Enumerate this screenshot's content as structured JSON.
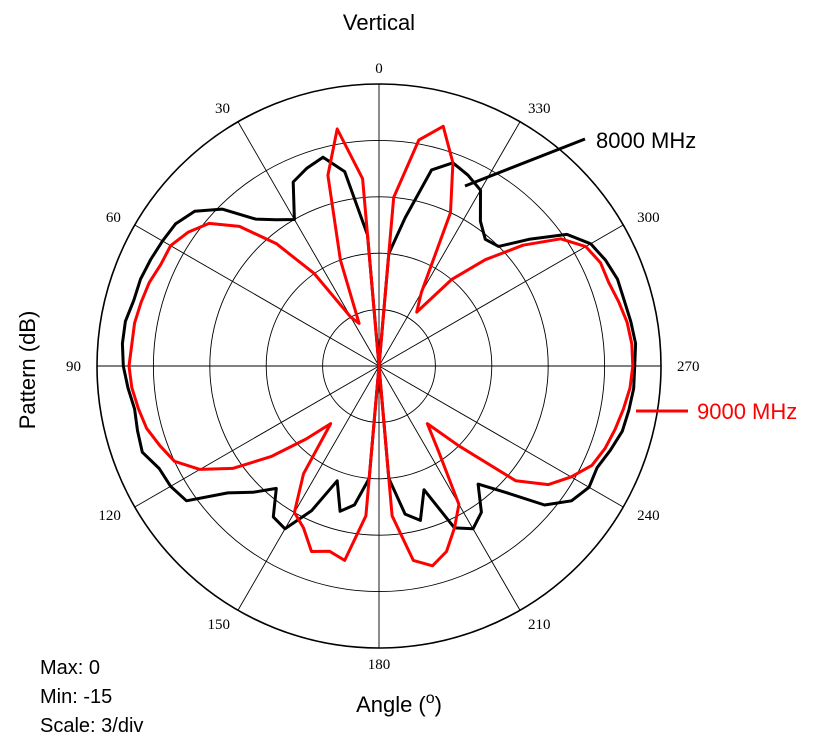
{
  "chart_data": {
    "type": "polar",
    "title": "Vertical",
    "xlabel": "Angle",
    "xlabel_superscript": "o",
    "ylabel": "Pattern (dB)",
    "radial_range": [
      -15,
      0
    ],
    "radial_scale": 3,
    "angle_ticks": [
      "0",
      "30",
      "60",
      "90",
      "120",
      "150",
      "180",
      "210",
      "240",
      "270",
      "300",
      "330"
    ],
    "angle_direction": "counterclockwise, 0 at top",
    "grid": true,
    "series": [
      {
        "name": "8000 MHz",
        "color": "#000000",
        "angles": [
          0,
          5,
          10,
          15,
          20,
          25,
          30,
          35,
          40,
          45,
          50,
          55,
          60,
          65,
          70,
          75,
          80,
          85,
          90,
          95,
          100,
          105,
          110,
          115,
          120,
          125,
          130,
          135,
          140,
          145,
          150,
          155,
          160,
          165,
          170,
          175,
          180,
          185,
          190,
          195,
          200,
          205,
          210,
          215,
          220,
          225,
          230,
          235,
          240,
          245,
          250,
          255,
          260,
          265,
          270,
          275,
          280,
          285,
          290,
          295,
          300,
          305,
          310,
          315,
          320,
          325,
          330,
          335,
          340,
          345,
          350,
          355
        ],
        "values": [
          -15,
          -8,
          -4.5,
          -3.5,
          -3.8,
          -4.2,
          -6,
          -5.5,
          -4.8,
          -3.2,
          -2.2,
          -1.8,
          -1.7,
          -1.6,
          -1.5,
          -1.5,
          -1.3,
          -1.3,
          -1.4,
          -1.6,
          -1.8,
          -1.7,
          -1.6,
          -2.1,
          -2.2,
          -2.5,
          -4.5,
          -5.5,
          -6.5,
          -5.2,
          -5,
          -6.5,
          -8.5,
          -7,
          -7.5,
          -9,
          -15,
          -9,
          -7,
          -6.5,
          -8,
          -5.5,
          -5,
          -5.5,
          -6.8,
          -5.5,
          -3.5,
          -2.5,
          -2.1,
          -2.2,
          -1.9,
          -1.6,
          -1.5,
          -1.4,
          -1.4,
          -1.3,
          -1.4,
          -1.5,
          -1.5,
          -1.7,
          -2,
          -2.8,
          -4.5,
          -6,
          -6.2,
          -5.6,
          -4.2,
          -3.8,
          -3.5,
          -4.2,
          -7,
          -9
        ]
      },
      {
        "name": "9000 MHz",
        "color": "#ff0000",
        "angles": [
          0,
          5,
          10,
          15,
          20,
          25,
          30,
          35,
          40,
          45,
          50,
          55,
          60,
          65,
          70,
          75,
          80,
          85,
          90,
          95,
          100,
          105,
          110,
          115,
          120,
          125,
          130,
          135,
          140,
          145,
          150,
          155,
          160,
          165,
          170,
          175,
          180,
          185,
          190,
          195,
          200,
          205,
          210,
          215,
          220,
          225,
          230,
          235,
          240,
          245,
          250,
          255,
          260,
          265,
          270,
          275,
          280,
          285,
          290,
          295,
          300,
          305,
          310,
          315,
          320,
          325,
          330,
          335,
          340,
          345,
          350,
          355
        ],
        "values": [
          -15,
          -5,
          -2.2,
          -4.5,
          -9,
          -12.5,
          -12,
          -9,
          -6.5,
          -4.5,
          -3.2,
          -2.6,
          -2.2,
          -2.2,
          -2,
          -1.9,
          -1.8,
          -1.8,
          -1.7,
          -1.8,
          -2,
          -2.2,
          -2.6,
          -3,
          -4,
          -5.5,
          -7.5,
          -9.5,
          -11,
          -8,
          -6,
          -5.5,
          -4.5,
          -4.8,
          -4.5,
          -7,
          -15,
          -7,
          -4.5,
          -4,
          -4.5,
          -5.5,
          -6.5,
          -9.5,
          -11,
          -9,
          -5.5,
          -4,
          -3.2,
          -2.5,
          -2.2,
          -2,
          -1.8,
          -1.6,
          -1.5,
          -1.5,
          -1.6,
          -1.8,
          -2,
          -2,
          -2.3,
          -3.2,
          -5,
          -7,
          -9,
          -11.5,
          -10.5,
          -6,
          -3.5,
          -1.8,
          -2.8,
          -6
        ]
      }
    ],
    "footer": [
      "Max: 0",
      "Min: -15",
      "Scale: 3/div"
    ]
  }
}
